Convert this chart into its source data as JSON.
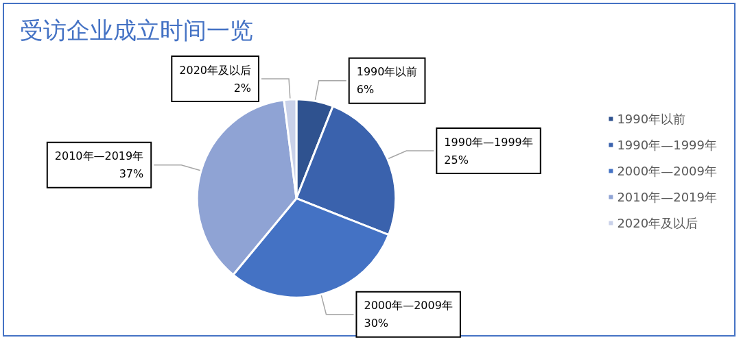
{
  "chart_data": {
    "type": "pie",
    "title": "受访企业成立时间一览",
    "categories": [
      "1990年以前",
      "1990年—1999年",
      "2000年—2009年",
      "2010年—2019年",
      "2020年及以后"
    ],
    "values": [
      6,
      25,
      30,
      37,
      2
    ],
    "value_labels": [
      "6%",
      "25%",
      "30%",
      "37%",
      "2%"
    ],
    "colors": [
      "#2f528f",
      "#3a62ad",
      "#4472c4",
      "#8fa3d4",
      "#c9d1e9"
    ],
    "legend": "right"
  }
}
